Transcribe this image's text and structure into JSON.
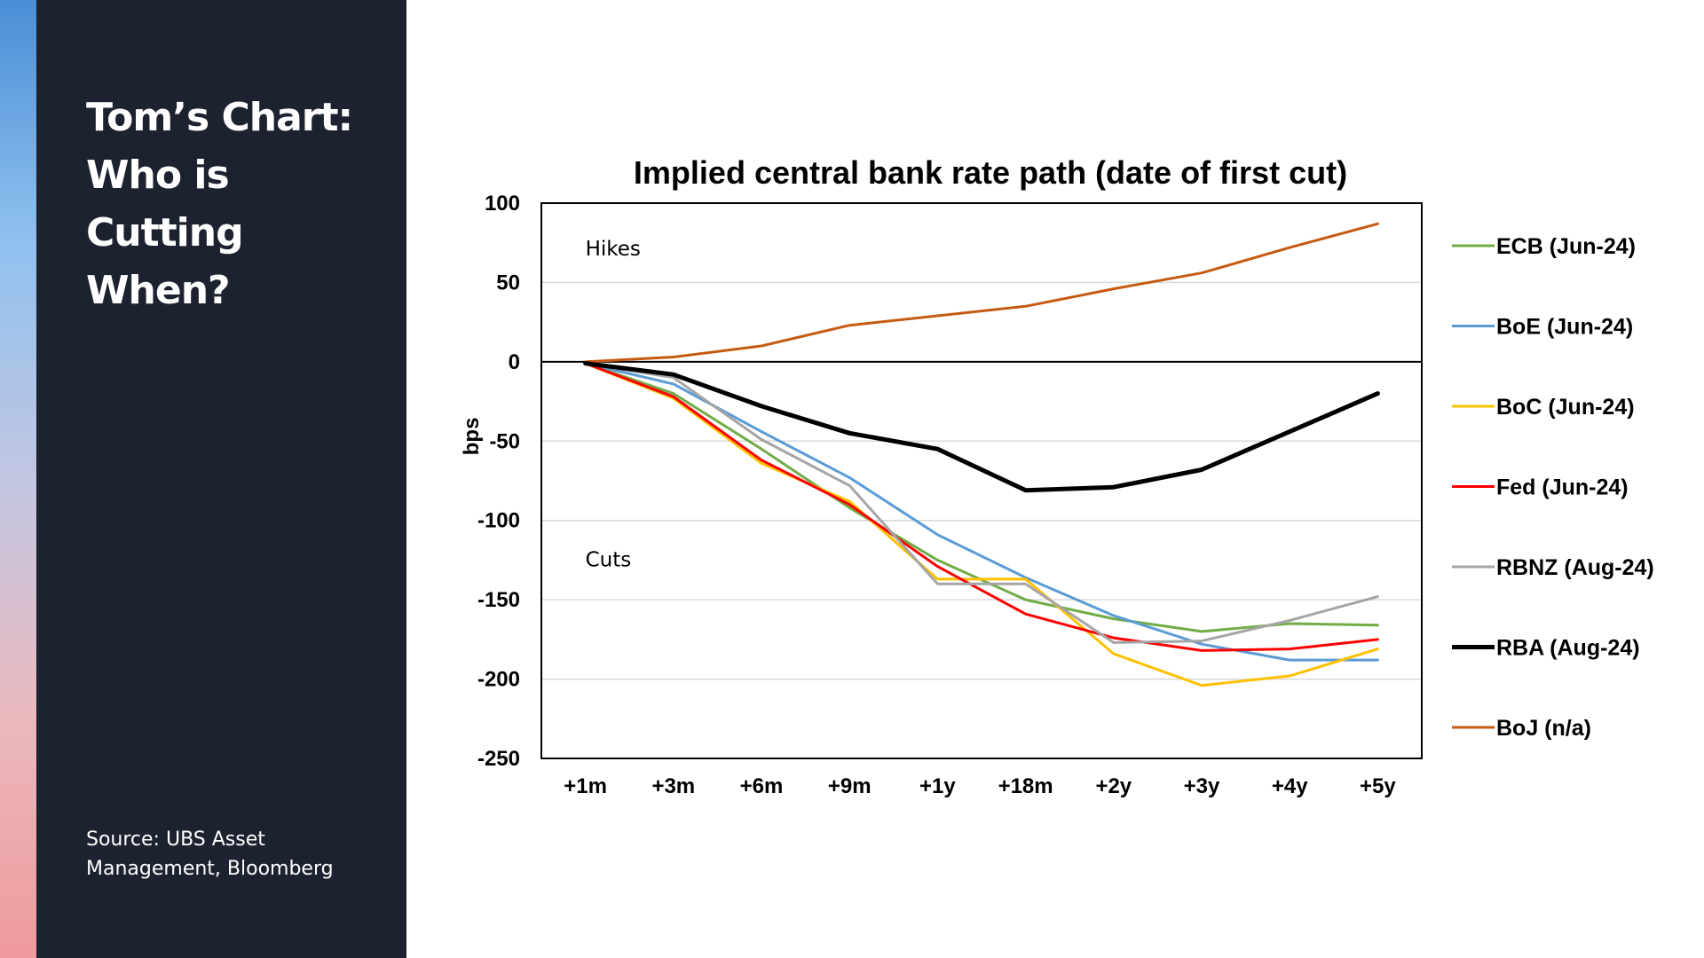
{
  "slide": {
    "title_lines": [
      "Tom’s Chart:",
      "Who is",
      "Cutting",
      "When?"
    ],
    "source_lines": [
      "Source: UBS Asset",
      "Management, Bloomberg"
    ]
  },
  "chart_data": {
    "type": "line",
    "title": "Implied central bank rate path (date of first cut)",
    "xlabel": "",
    "ylabel": "bps",
    "categories": [
      "+1m",
      "+3m",
      "+6m",
      "+9m",
      "+1y",
      "+18m",
      "+2y",
      "+3y",
      "+4y",
      "+5y"
    ],
    "ylim": [
      -250,
      100
    ],
    "yticks": [
      100,
      50,
      0,
      -50,
      -100,
      -150,
      -200,
      -250
    ],
    "grid": true,
    "legend_position": "right",
    "annotations": [
      {
        "text": "Hikes",
        "at": {
          "x": "+1m",
          "y": 67
        }
      },
      {
        "text": "Cuts",
        "at": {
          "x": "+1m",
          "y": -129
        }
      }
    ],
    "series": [
      {
        "name": "ECB (Jun-24)",
        "color": "#70ad47",
        "values": [
          -1,
          -20,
          -55,
          -92,
          -125,
          -150,
          -162,
          -170,
          -165,
          -166
        ]
      },
      {
        "name": "BoE (Jun-24)",
        "color": "#5b9bd5",
        "values": [
          -1,
          -14,
          -44,
          -73,
          -109,
          -136,
          -160,
          -178,
          -188,
          -188
        ]
      },
      {
        "name": "BoC (Jun-24)",
        "color": "#ffc000",
        "values": [
          -1,
          -23,
          -64,
          -88,
          -137,
          -137,
          -184,
          -204,
          -198,
          -181
        ]
      },
      {
        "name": "Fed (Jun-24)",
        "color": "#ff0000",
        "values": [
          -1,
          -22,
          -62,
          -90,
          -129,
          -159,
          -174,
          -182,
          -181,
          -175
        ]
      },
      {
        "name": "RBNZ (Aug-24)",
        "color": "#a5a5a5",
        "values": [
          -1,
          -10,
          -49,
          -78,
          -140,
          -140,
          -177,
          -176,
          -163,
          -148
        ]
      },
      {
        "name": "RBA (Aug-24)",
        "color": "#000000",
        "values": [
          -1,
          -8,
          -28,
          -45,
          -55,
          -81,
          -79,
          -68,
          -44,
          -20
        ]
      },
      {
        "name": "BoJ (n/a)",
        "color": "#c55a11",
        "values": [
          0,
          3,
          10,
          23,
          29,
          35,
          46,
          56,
          72,
          87
        ]
      }
    ]
  }
}
